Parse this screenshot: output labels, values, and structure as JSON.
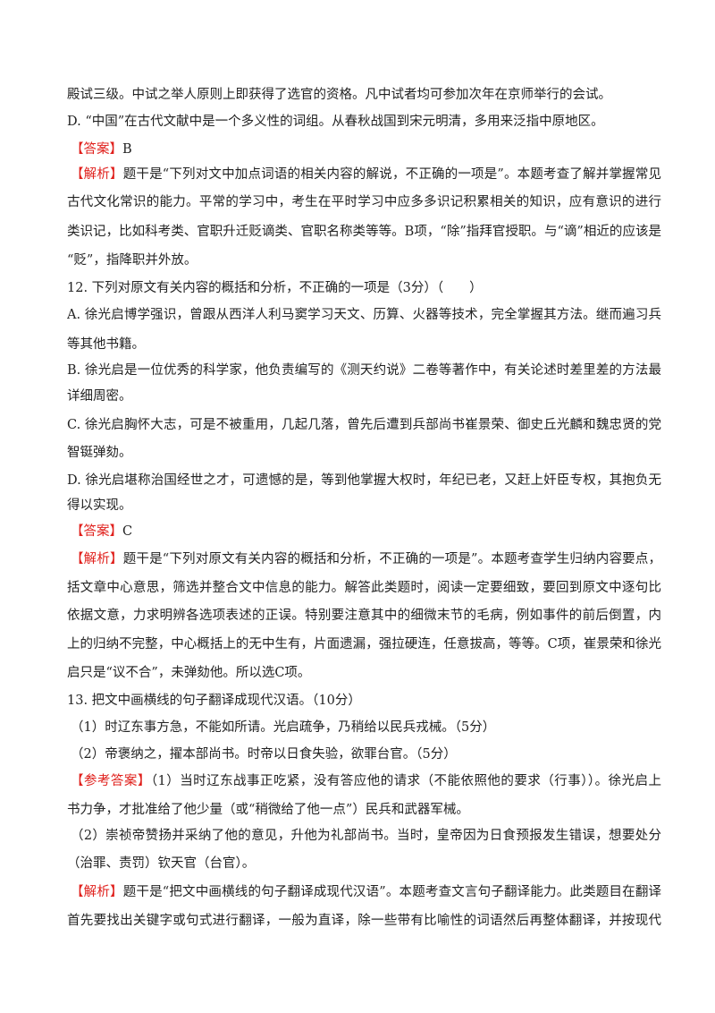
{
  "colors": {
    "label": "#e0201c",
    "text": "#222222"
  },
  "lines": [
    {
      "text": "殿试三级。中试之举人原则上即获得了选官的资格。凡中试者均可参加次年在京师举行的会试。"
    },
    {
      "text": "D. “中国”在古代文献中是一个多义性的词组。从春秋战国到宋元明清，多用来泛指中原地区。"
    },
    {
      "label": "【答案】",
      "text": "B"
    },
    {
      "label": "【解析】",
      "text": "题干是“下列对文中加点词语的相关内容的解说，不正确的一项是”。本题考查了解并掌握常见的",
      "justify": true
    },
    {
      "text": "古代文化常识的能力。平常的学习中，考生在平时学习中应多多识记积累相关的知识，应有意识的进行分",
      "justify": true
    },
    {
      "text": "类识记，比如科考类、官职升迁贬谪类、官职名称类等等。B项，“除”指拜官授职。与“谪”相近的应该是",
      "justify": true
    },
    {
      "text": "“贬”，指降职并外放。"
    },
    {
      "text": "12. 下列对原文有关内容的概括和分析，不正确的一项是（3分）（　　）"
    },
    {
      "text": "A. 徐光启博学强识，曾跟从西洋人利马窦学习天文、历算、火器等技术，完全掌握其方法。继而遍习兵机",
      "justify": true
    },
    {
      "text": "等其他书籍。"
    },
    {
      "text": "B. 徐光启是一位优秀的科学家，他负责编写的《测天约说》二卷等著作中，有关论述时差里差的方法最为",
      "justify": true
    },
    {
      "text": "详细周密。"
    },
    {
      "text": "C. 徐光启胸怀大志，可是不被重用，几起几落，曾先后遭到兵部尚书崔景荣、御史丘光麟和魏忠贤的党羽",
      "justify": true
    },
    {
      "text": "智铤弹劾。"
    },
    {
      "text": "D. 徐光启堪称治国经世之才，可遗憾的是，等到他掌握大权时，年纪已老，又赶上奸臣专权，其抱负无法",
      "justify": true
    },
    {
      "text": "得以实现。"
    },
    {
      "label": "【答案】",
      "text": "C"
    },
    {
      "label": "【解析】",
      "text": "题干是“下列对原文有关内容的概括和分析，不正确的一项是”。本题考查学生归纳内容要点，概",
      "justify": true
    },
    {
      "text": "括文章中心意思，筛选并整合文中信息的能力。解答此类题时，阅读一定要细致，要回到原文中逐句比较，",
      "justify": true
    },
    {
      "text": "依据文意，力求明辨各选项表述的正误。特别要注意其中的细微末节的毛病，例如事件的前后倒置，内容",
      "justify": true
    },
    {
      "text": "上的归纳不完整，中心概括上的无中生有，片面遗漏，强拉硬连，任意拔高，等等。C项，崔景荣和徐光",
      "justify": true
    },
    {
      "text": "启只是“议不合”，未弹劾他。所以选C项。"
    },
    {
      "text": "13. 把文中画横线的句子翻译成现代汉语。（10分）"
    },
    {
      "text": "（1）时辽东事方急，不能如所请。光启疏争，乃稍给以民兵戎械。（5分）",
      "indent": true
    },
    {
      "text": "（2）帝褒纳之，擢本部尚书。时帝以日食失验，欲罪台官。（5分）",
      "indent": true
    },
    {
      "label": "【参考答案】",
      "text": "（1）当时辽东战事正吃紧，没有答应他的请求（不能依照他的要求（行事））。徐光启上",
      "justify": true
    },
    {
      "text": "书力争，才批准给了他少量（或“稍微给了他一点”）民兵和武器军械。"
    },
    {
      "text": "（2）崇祯帝赞扬并采纳了他的意见，升他为礼部尚书。当时，皇帝因为日食预报发生错误，想要处分",
      "justify": true,
      "indent": true
    },
    {
      "text": "（治罪、责罚）钦天官（台官）。"
    },
    {
      "label": "【解析】",
      "text": "题干是“把文中画横线的句子翻译成现代汉语”。本题考查文言句子翻译能力。此类题目在翻译时",
      "justify": true
    },
    {
      "text": "首先要找出关键字或句式进行翻译，一般为直译，除一些带有比喻性的词语然后再整体翻译，并按现代汉",
      "justify": true
    }
  ]
}
